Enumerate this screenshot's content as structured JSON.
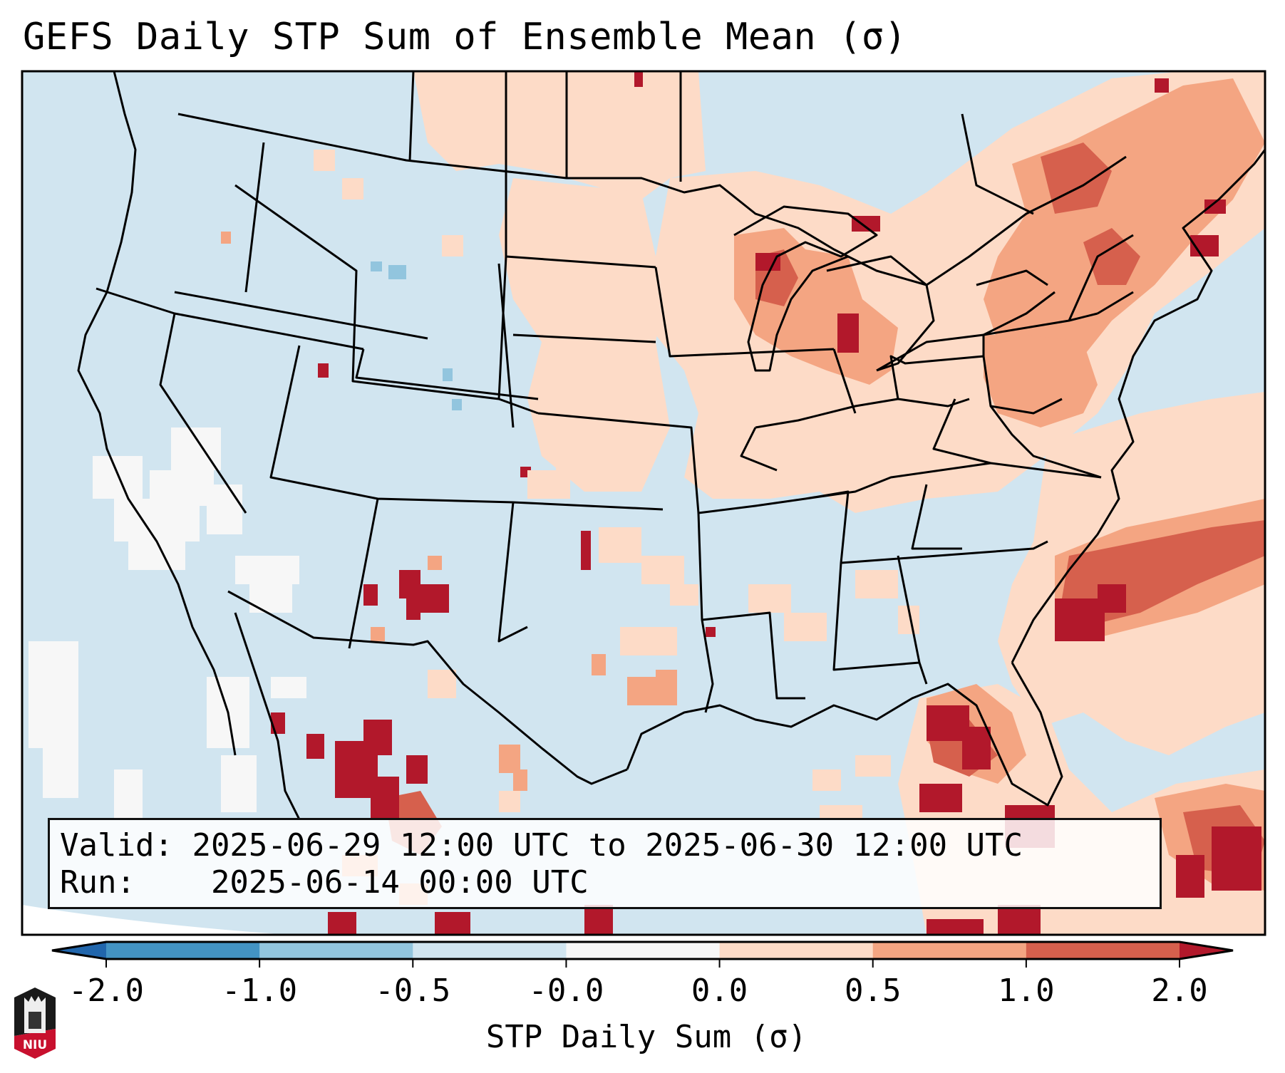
{
  "title": "GEFS Daily STP Sum of Ensemble Mean (σ)",
  "info": {
    "valid_label": "Valid:",
    "valid_value": "2025-06-29 12:00 UTC to 2025-06-30 12:00 UTC",
    "run_label": "Run:",
    "run_value": "2025-06-14 00:00 UTC"
  },
  "colorbar": {
    "label": "STP Daily Sum (σ)",
    "ticks": [
      "-2.0",
      "-1.0",
      "-0.5",
      "-0.0",
      "0.0",
      "0.5",
      "1.0",
      "2.0"
    ],
    "bins": [
      {
        "range": "< -2.0",
        "color": "#2166ac"
      },
      {
        "range": "-2.0 to -1.0",
        "color": "#4393c3"
      },
      {
        "range": "-1.0 to -0.5",
        "color": "#92c5de"
      },
      {
        "range": "-0.5 to -0.0",
        "color": "#d1e5f0"
      },
      {
        "range": "-0.0 to 0.0",
        "color": "#f7f7f7"
      },
      {
        "range": "0.0 to 0.5",
        "color": "#fddbc7"
      },
      {
        "range": "0.5 to 1.0",
        "color": "#f4a582"
      },
      {
        "range": "1.0 to 2.0",
        "color": "#d6604d"
      },
      {
        "range": "> 2.0",
        "color": "#b2182b"
      }
    ],
    "extend": "both"
  },
  "map": {
    "projection": "Lambert Conformal (CONUS)",
    "background_color": "#d1e5f0",
    "features": [
      "coastlines",
      "state borders",
      "country borders"
    ]
  },
  "logo": {
    "text": "NIU"
  }
}
